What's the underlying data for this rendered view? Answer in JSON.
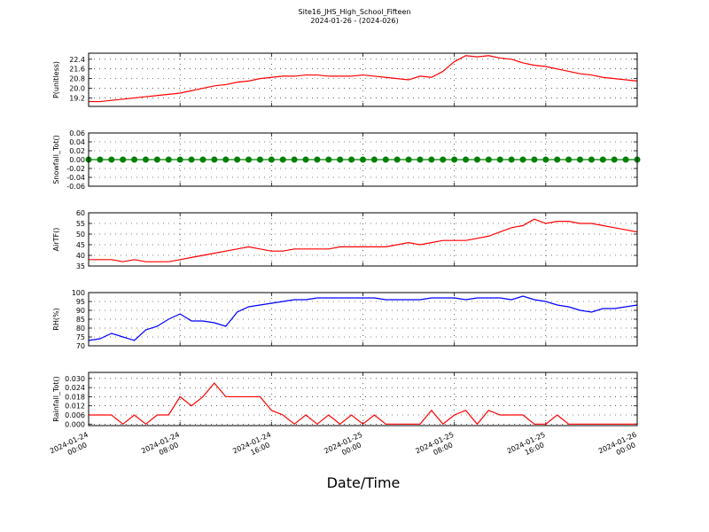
{
  "title": "Site16_JHS_High_School_Fifteen",
  "subtitle": "2024-01-26 - (2024-026)",
  "x_label": "Date/Time",
  "chart_data": [
    {
      "type": "line",
      "y_label": "P(unitless)",
      "color": "#ff0000",
      "grid": true,
      "xlim": [
        "2024-01-24 00:00",
        "2024-01-26 00:00"
      ],
      "xticks": [
        "2024-01-24 00:00",
        "2024-01-24 08:00",
        "2024-01-24 16:00",
        "2024-01-25 00:00",
        "2024-01-25 08:00",
        "2024-01-25 16:00",
        "2024-01-26 00:00"
      ],
      "ylim": [
        18.5,
        22.9
      ],
      "yticks": [
        19.2,
        {
          "value": 20.0,
          "label": "20.0"
        },
        20.8,
        21.6,
        22.4
      ],
      "x": [
        "2024-01-24 00:00",
        "2024-01-24 01:00",
        "2024-01-24 02:00",
        "2024-01-24 03:00",
        "2024-01-24 04:00",
        "2024-01-24 05:00",
        "2024-01-24 06:00",
        "2024-01-24 07:00",
        "2024-01-24 08:00",
        "2024-01-24 09:00",
        "2024-01-24 10:00",
        "2024-01-24 11:00",
        "2024-01-24 12:00",
        "2024-01-24 13:00",
        "2024-01-24 14:00",
        "2024-01-24 15:00",
        "2024-01-24 16:00",
        "2024-01-24 17:00",
        "2024-01-24 18:00",
        "2024-01-24 19:00",
        "2024-01-24 20:00",
        "2024-01-24 21:00",
        "2024-01-24 22:00",
        "2024-01-24 23:00",
        "2024-01-25 00:00",
        "2024-01-25 01:00",
        "2024-01-25 02:00",
        "2024-01-25 03:00",
        "2024-01-25 04:00",
        "2024-01-25 05:00",
        "2024-01-25 06:00",
        "2024-01-25 07:00",
        "2024-01-25 08:00",
        "2024-01-25 09:00",
        "2024-01-25 10:00",
        "2024-01-25 11:00",
        "2024-01-25 12:00",
        "2024-01-25 13:00",
        "2024-01-25 14:00",
        "2024-01-25 15:00",
        "2024-01-25 16:00",
        "2024-01-25 17:00",
        "2024-01-25 18:00",
        "2024-01-25 19:00",
        "2024-01-25 20:00",
        "2024-01-25 21:00",
        "2024-01-25 22:00",
        "2024-01-25 23:00",
        "2024-01-26 00:00"
      ],
      "values": [
        18.9,
        18.9,
        19.0,
        19.1,
        19.2,
        19.3,
        19.4,
        19.5,
        19.6,
        19.8,
        20.0,
        20.2,
        20.3,
        20.5,
        20.6,
        20.8,
        20.9,
        21.0,
        21.0,
        21.1,
        21.1,
        21.0,
        21.0,
        21.0,
        21.1,
        21.0,
        20.9,
        20.8,
        20.7,
        21.0,
        20.9,
        21.4,
        22.2,
        22.7,
        22.6,
        22.7,
        22.5,
        22.4,
        22.1,
        21.9,
        21.8,
        21.6,
        21.4,
        21.2,
        21.1,
        20.9,
        20.8,
        20.7,
        20.6
      ]
    },
    {
      "type": "line",
      "y_label": "Snowfall_Tot()",
      "color": "#008000",
      "marker": "o",
      "grid": true,
      "xlim": [
        "2024-01-24 00:00",
        "2024-01-26 00:00"
      ],
      "xticks": [
        "2024-01-24 00:00",
        "2024-01-24 08:00",
        "2024-01-24 16:00",
        "2024-01-25 00:00",
        "2024-01-25 08:00",
        "2024-01-25 16:00",
        "2024-01-26 00:00"
      ],
      "ylim": [
        -0.06,
        0.06
      ],
      "yticks": [
        -0.06,
        -0.04,
        -0.02,
        {
          "value": 0,
          "label": "0.00"
        },
        0.02,
        0.04,
        0.06
      ],
      "x": [
        "2024-01-24 00:00",
        "2024-01-24 01:00",
        "2024-01-24 02:00",
        "2024-01-24 03:00",
        "2024-01-24 04:00",
        "2024-01-24 05:00",
        "2024-01-24 06:00",
        "2024-01-24 07:00",
        "2024-01-24 08:00",
        "2024-01-24 09:00",
        "2024-01-24 10:00",
        "2024-01-24 11:00",
        "2024-01-24 12:00",
        "2024-01-24 13:00",
        "2024-01-24 14:00",
        "2024-01-24 15:00",
        "2024-01-24 16:00",
        "2024-01-24 17:00",
        "2024-01-24 18:00",
        "2024-01-24 19:00",
        "2024-01-24 20:00",
        "2024-01-24 21:00",
        "2024-01-24 22:00",
        "2024-01-24 23:00",
        "2024-01-25 00:00",
        "2024-01-25 01:00",
        "2024-01-25 02:00",
        "2024-01-25 03:00",
        "2024-01-25 04:00",
        "2024-01-25 05:00",
        "2024-01-25 06:00",
        "2024-01-25 07:00",
        "2024-01-25 08:00",
        "2024-01-25 09:00",
        "2024-01-25 10:00",
        "2024-01-25 11:00",
        "2024-01-25 12:00",
        "2024-01-25 13:00",
        "2024-01-25 14:00",
        "2024-01-25 15:00",
        "2024-01-25 16:00",
        "2024-01-25 17:00",
        "2024-01-25 18:00",
        "2024-01-25 19:00",
        "2024-01-25 20:00",
        "2024-01-25 21:00",
        "2024-01-25 22:00",
        "2024-01-25 23:00",
        "2024-01-26 00:00"
      ],
      "values": [
        0,
        0,
        0,
        0,
        0,
        0,
        0,
        0,
        0,
        0,
        0,
        0,
        0,
        0,
        0,
        0,
        0,
        0,
        0,
        0,
        0,
        0,
        0,
        0,
        0,
        0,
        0,
        0,
        0,
        0,
        0,
        0,
        0,
        0,
        0,
        0,
        0,
        0,
        0,
        0,
        0,
        0,
        0,
        0,
        0,
        0,
        0,
        0,
        0
      ]
    },
    {
      "type": "line",
      "y_label": "AirTF()",
      "color": "#ff0000",
      "grid": true,
      "xlim": [
        "2024-01-24 00:00",
        "2024-01-26 00:00"
      ],
      "xticks": [
        "2024-01-24 00:00",
        "2024-01-24 08:00",
        "2024-01-24 16:00",
        "2024-01-25 00:00",
        "2024-01-25 08:00",
        "2024-01-25 16:00",
        "2024-01-26 00:00"
      ],
      "ylim": [
        35,
        60
      ],
      "yticks": [
        35,
        40,
        45,
        50,
        55,
        60
      ],
      "x": [
        "2024-01-24 00:00",
        "2024-01-24 01:00",
        "2024-01-24 02:00",
        "2024-01-24 03:00",
        "2024-01-24 04:00",
        "2024-01-24 05:00",
        "2024-01-24 06:00",
        "2024-01-24 07:00",
        "2024-01-24 08:00",
        "2024-01-24 09:00",
        "2024-01-24 10:00",
        "2024-01-24 11:00",
        "2024-01-24 12:00",
        "2024-01-24 13:00",
        "2024-01-24 14:00",
        "2024-01-24 15:00",
        "2024-01-24 16:00",
        "2024-01-24 17:00",
        "2024-01-24 18:00",
        "2024-01-24 19:00",
        "2024-01-24 20:00",
        "2024-01-24 21:00",
        "2024-01-24 22:00",
        "2024-01-24 23:00",
        "2024-01-25 00:00",
        "2024-01-25 01:00",
        "2024-01-25 02:00",
        "2024-01-25 03:00",
        "2024-01-25 04:00",
        "2024-01-25 05:00",
        "2024-01-25 06:00",
        "2024-01-25 07:00",
        "2024-01-25 08:00",
        "2024-01-25 09:00",
        "2024-01-25 10:00",
        "2024-01-25 11:00",
        "2024-01-25 12:00",
        "2024-01-25 13:00",
        "2024-01-25 14:00",
        "2024-01-25 15:00",
        "2024-01-25 16:00",
        "2024-01-25 17:00",
        "2024-01-25 18:00",
        "2024-01-25 19:00",
        "2024-01-25 20:00",
        "2024-01-25 21:00",
        "2024-01-25 22:00",
        "2024-01-25 23:00",
        "2024-01-26 00:00"
      ],
      "values": [
        38,
        38,
        38,
        37,
        38,
        37,
        37,
        37,
        38,
        39,
        40,
        41,
        42,
        43,
        44,
        43,
        42,
        42,
        43,
        43,
        43,
        43,
        44,
        44,
        44,
        44,
        44,
        45,
        46,
        45,
        46,
        47,
        47,
        47,
        48,
        49,
        51,
        53,
        54,
        57,
        55,
        56,
        56,
        55,
        55,
        54,
        53,
        52,
        51
      ]
    },
    {
      "type": "line",
      "y_label": "RH(%)",
      "color": "#0000ff",
      "grid": true,
      "xlim": [
        "2024-01-24 00:00",
        "2024-01-26 00:00"
      ],
      "xticks": [
        "2024-01-24 00:00",
        "2024-01-24 08:00",
        "2024-01-24 16:00",
        "2024-01-25 00:00",
        "2024-01-25 08:00",
        "2024-01-25 16:00",
        "2024-01-26 00:00"
      ],
      "ylim": [
        70,
        100
      ],
      "yticks": [
        70,
        75,
        80,
        85,
        90,
        95,
        100
      ],
      "x": [
        "2024-01-24 00:00",
        "2024-01-24 01:00",
        "2024-01-24 02:00",
        "2024-01-24 03:00",
        "2024-01-24 04:00",
        "2024-01-24 05:00",
        "2024-01-24 06:00",
        "2024-01-24 07:00",
        "2024-01-24 08:00",
        "2024-01-24 09:00",
        "2024-01-24 10:00",
        "2024-01-24 11:00",
        "2024-01-24 12:00",
        "2024-01-24 13:00",
        "2024-01-24 14:00",
        "2024-01-24 15:00",
        "2024-01-24 16:00",
        "2024-01-24 17:00",
        "2024-01-24 18:00",
        "2024-01-24 19:00",
        "2024-01-24 20:00",
        "2024-01-24 21:00",
        "2024-01-24 22:00",
        "2024-01-24 23:00",
        "2024-01-25 00:00",
        "2024-01-25 01:00",
        "2024-01-25 02:00",
        "2024-01-25 03:00",
        "2024-01-25 04:00",
        "2024-01-25 05:00",
        "2024-01-25 06:00",
        "2024-01-25 07:00",
        "2024-01-25 08:00",
        "2024-01-25 09:00",
        "2024-01-25 10:00",
        "2024-01-25 11:00",
        "2024-01-25 12:00",
        "2024-01-25 13:00",
        "2024-01-25 14:00",
        "2024-01-25 15:00",
        "2024-01-25 16:00",
        "2024-01-25 17:00",
        "2024-01-25 18:00",
        "2024-01-25 19:00",
        "2024-01-25 20:00",
        "2024-01-25 21:00",
        "2024-01-25 22:00",
        "2024-01-25 23:00",
        "2024-01-26 00:00"
      ],
      "values": [
        73,
        74,
        77,
        75,
        73,
        79,
        81,
        85,
        88,
        84,
        84,
        83,
        81,
        89,
        92,
        93,
        94,
        95,
        96,
        96,
        97,
        97,
        97,
        97,
        97,
        97,
        96,
        96,
        96,
        96,
        97,
        97,
        97,
        96,
        97,
        97,
        97,
        96,
        98,
        96,
        95,
        93,
        92,
        90,
        89,
        91,
        91,
        92,
        93
      ]
    },
    {
      "type": "line",
      "y_label": "Rainfall_Tot()",
      "color": "#ff0000",
      "grid": true,
      "xlim": [
        "2024-01-24 00:00",
        "2024-01-26 00:00"
      ],
      "xticks": [
        "2024-01-24 00:00",
        "2024-01-24 08:00",
        "2024-01-24 16:00",
        "2024-01-25 00:00",
        "2024-01-25 08:00",
        "2024-01-25 16:00",
        "2024-01-26 00:00"
      ],
      "ylim": [
        -0.001,
        0.034
      ],
      "yticks": [
        {
          "value": 0,
          "label": "0.000"
        },
        0.006,
        0.012,
        0.018,
        0.024,
        {
          "value": 0.03,
          "label": "0.030"
        }
      ],
      "x": [
        "2024-01-24 00:00",
        "2024-01-24 01:00",
        "2024-01-24 02:00",
        "2024-01-24 03:00",
        "2024-01-24 04:00",
        "2024-01-24 05:00",
        "2024-01-24 06:00",
        "2024-01-24 07:00",
        "2024-01-24 08:00",
        "2024-01-24 09:00",
        "2024-01-24 10:00",
        "2024-01-24 11:00",
        "2024-01-24 12:00",
        "2024-01-24 13:00",
        "2024-01-24 14:00",
        "2024-01-24 15:00",
        "2024-01-24 16:00",
        "2024-01-24 17:00",
        "2024-01-24 18:00",
        "2024-01-24 19:00",
        "2024-01-24 20:00",
        "2024-01-24 21:00",
        "2024-01-24 22:00",
        "2024-01-24 23:00",
        "2024-01-25 00:00",
        "2024-01-25 01:00",
        "2024-01-25 02:00",
        "2024-01-25 03:00",
        "2024-01-25 04:00",
        "2024-01-25 05:00",
        "2024-01-25 06:00",
        "2024-01-25 07:00",
        "2024-01-25 08:00",
        "2024-01-25 09:00",
        "2024-01-25 10:00",
        "2024-01-25 11:00",
        "2024-01-25 12:00",
        "2024-01-25 13:00",
        "2024-01-25 14:00",
        "2024-01-25 15:00",
        "2024-01-25 16:00",
        "2024-01-25 17:00",
        "2024-01-25 18:00",
        "2024-01-25 19:00",
        "2024-01-25 20:00",
        "2024-01-25 21:00",
        "2024-01-25 22:00",
        "2024-01-25 23:00",
        "2024-01-26 00:00"
      ],
      "values": [
        0.006,
        0.006,
        0.006,
        0,
        0.006,
        0,
        0.006,
        0.006,
        0.018,
        0.012,
        0.018,
        0.027,
        0.018,
        0.018,
        0.018,
        0.018,
        0.009,
        0.006,
        0,
        0.006,
        0,
        0.006,
        0,
        0.006,
        0,
        0.006,
        0,
        0,
        0,
        0,
        0.009,
        0,
        0.006,
        0.009,
        0,
        0.009,
        0.006,
        0.006,
        0.006,
        0,
        0,
        0.006,
        0,
        0,
        0,
        0,
        0,
        0,
        0
      ]
    }
  ]
}
